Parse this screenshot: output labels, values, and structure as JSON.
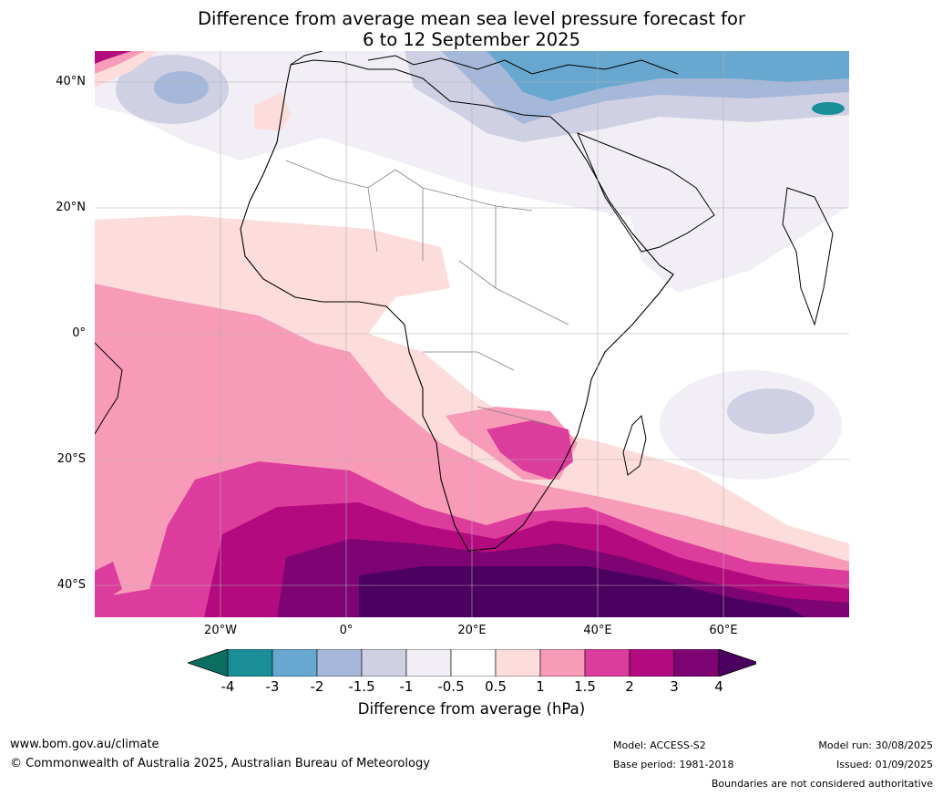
{
  "title_line1": "Difference from average mean sea level pressure forecast for",
  "title_line2": "6 to 12 September 2025",
  "lat_labels": [
    "40°N",
    "20°N",
    "0°",
    "20°S",
    "40°S"
  ],
  "lon_labels": [
    "20°W",
    "0°",
    "20°E",
    "40°E",
    "60°E"
  ],
  "colorbar": {
    "label": "Difference from average (hPa)",
    "ticks": [
      "-4",
      "-3",
      "-2",
      "-1.5",
      "-1",
      "-0.5",
      "0.5",
      "1",
      "1.5",
      "2",
      "3",
      "4"
    ],
    "colors": [
      "#1a8e97",
      "#68a8d0",
      "#a6b8d9",
      "#cfd0e4",
      "#f1eef5",
      "#ffffff",
      "#fddcdc",
      "#f89bb8",
      "#dc3c9c",
      "#b30a80",
      "#7d0472"
    ],
    "under_color": "#0a6e60",
    "over_color": "#4b0060"
  },
  "footer": {
    "website": "www.bom.gov.au/climate",
    "copyright": "© Commonwealth of Australia 2025, Australian Bureau of Meteorology",
    "model": "Model: ACCESS-S2",
    "base_period": "Base period: 1981-2018",
    "model_run": "Model run: 30/08/2025",
    "issued": "Issued: 01/09/2025",
    "disclaimer": "Boundaries are not considered authoritative"
  }
}
